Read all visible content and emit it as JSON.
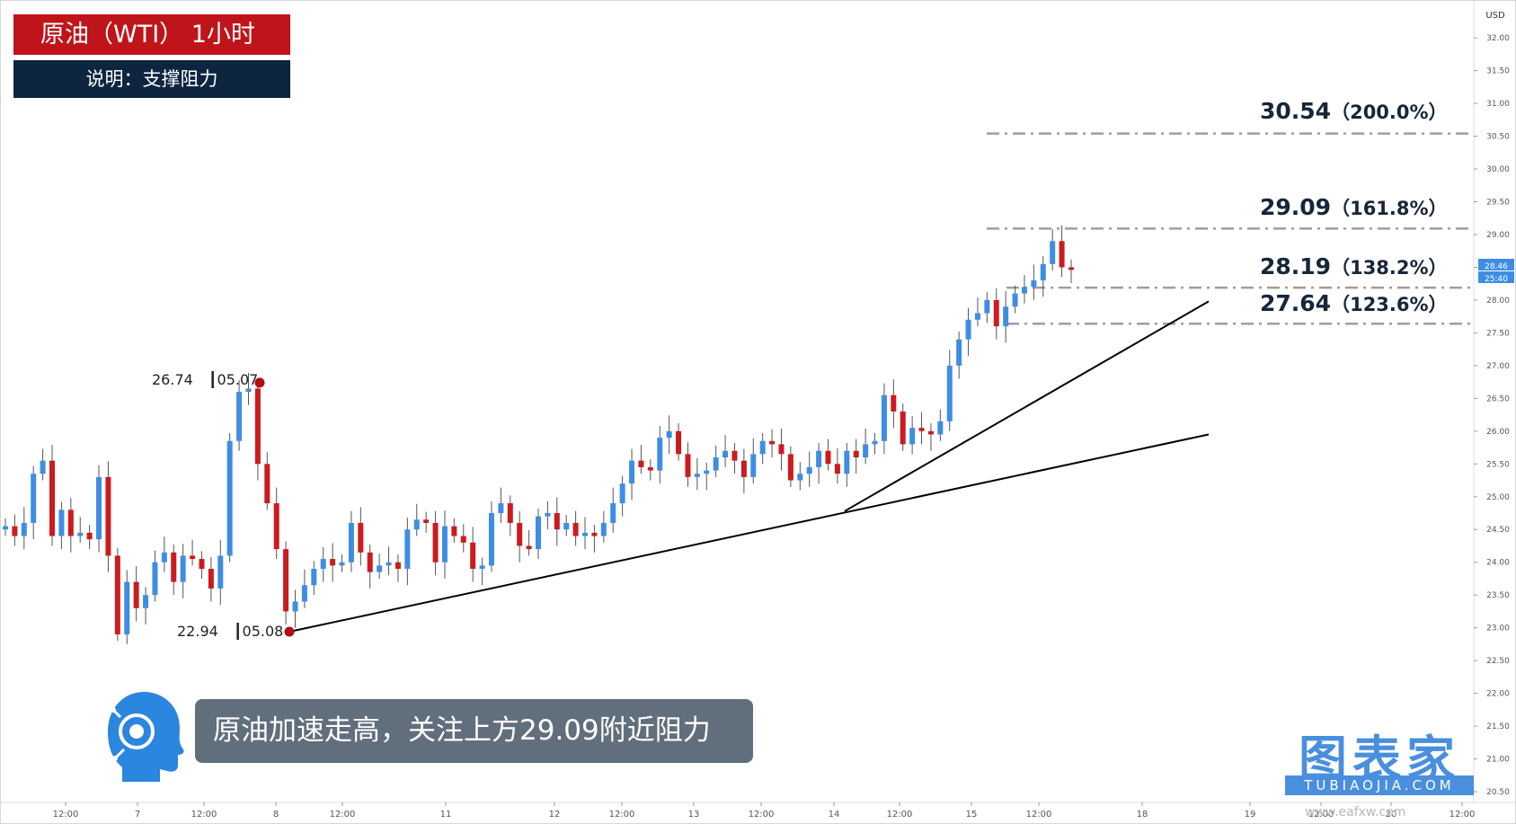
{
  "title": "原油（WTI） 1小时",
  "subtitle": "说明：支撑阻力",
  "caption": "原油加速走高，关注上方29.09附近阻力",
  "logo": {
    "text": "图表家",
    "sub": "TUBIAOJIA.COM"
  },
  "watermark": "www.eafxw.com",
  "currency_label": "USD",
  "current_price_tag": {
    "price": "28.46",
    "countdown": "25:40"
  },
  "fib_levels": [
    {
      "price": "30.54",
      "pct": "（200.0%）",
      "value": 30.54
    },
    {
      "price": "29.09",
      "pct": "（161.8%）",
      "value": 29.09
    },
    {
      "price": "28.19",
      "pct": "（138.2%）",
      "value": 28.19
    },
    {
      "price": "27.64",
      "pct": "（123.6%）",
      "value": 27.64
    }
  ],
  "points": {
    "high": {
      "price": "26.74",
      "date": "05.07",
      "value": 26.74
    },
    "low": {
      "price": "22.94",
      "date": "05.08",
      "value": 22.94
    }
  },
  "colors": {
    "up": "#3d8ee3",
    "down": "#cc1b1f",
    "fib": "#9e9e9e",
    "trend": "#000000",
    "point": "#b40d14"
  },
  "chart_data": {
    "type": "candlestick",
    "ylim": [
      20.5,
      32.4
    ],
    "y_ticks": [
      "32.00",
      "31.50",
      "31.00",
      "30.50",
      "30.00",
      "29.50",
      "29.00",
      "28.50",
      "28.00",
      "27.50",
      "27.00",
      "26.50",
      "26.00",
      "25.50",
      "25.00",
      "24.50",
      "24.00",
      "23.50",
      "23.00",
      "22.50",
      "22.00",
      "21.50",
      "21.00",
      "20.50"
    ],
    "x_ticks": [
      "12:00",
      "7",
      "12:00",
      "8",
      "12:00",
      "11",
      "12",
      "12:00",
      "13",
      "12:00",
      "14",
      "12:00",
      "15",
      "12:00",
      "18",
      "19",
      "12:00",
      "20",
      "12:00"
    ],
    "closes": [
      24.55,
      24.4,
      24.6,
      25.35,
      25.55,
      24.4,
      24.8,
      24.4,
      24.45,
      24.35,
      25.3,
      24.1,
      22.9,
      23.7,
      23.3,
      23.5,
      24.0,
      24.15,
      23.7,
      24.1,
      24.05,
      23.9,
      23.6,
      24.1,
      25.85,
      26.6,
      26.65,
      25.5,
      24.9,
      24.2,
      23.25,
      23.4,
      23.65,
      23.9,
      24.05,
      23.95,
      24.0,
      24.6,
      24.15,
      23.85,
      23.95,
      24.0,
      23.9,
      24.5,
      24.65,
      24.6,
      24.0,
      24.55,
      24.4,
      24.3,
      23.9,
      23.95,
      24.75,
      24.9,
      24.6,
      24.25,
      24.2,
      24.7,
      24.75,
      24.5,
      24.6,
      24.4,
      24.45,
      24.4,
      24.6,
      24.9,
      25.2,
      25.55,
      25.45,
      25.4,
      25.9,
      26.0,
      25.65,
      25.3,
      25.35,
      25.4,
      25.6,
      25.7,
      25.55,
      25.3,
      25.65,
      25.85,
      25.8,
      25.65,
      25.25,
      25.35,
      25.45,
      25.7,
      25.5,
      25.35,
      25.7,
      25.6,
      25.8,
      25.85,
      26.55,
      26.3,
      25.8,
      26.05,
      26.0,
      25.95,
      26.15,
      27.0,
      27.4,
      27.7,
      27.8,
      28.0,
      27.6,
      27.9,
      28.1,
      28.2,
      28.3,
      28.55,
      28.9,
      28.5,
      28.46
    ],
    "trendlines": [
      {
        "from": [
          22.94,
          "05.08"
        ],
        "to": [
          25.95,
          "ext"
        ]
      },
      {
        "from": [
          24.78,
          "14"
        ],
        "to": [
          27.98,
          "ext"
        ]
      }
    ]
  }
}
